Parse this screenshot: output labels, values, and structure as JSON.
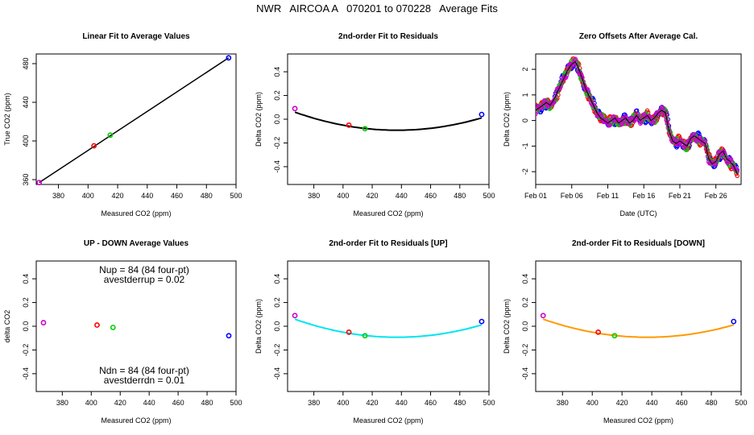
{
  "page_title": "NWR   AIRCOA A   070201 to 070228   Average Fits",
  "colors": {
    "purple": "#cc00cc",
    "red": "#ff0000",
    "green": "#00cc00",
    "blue": "#0000ff",
    "black": "#000000",
    "cyan": "#00e5ee",
    "orange": "#ff9900"
  },
  "chart_data": [
    {
      "type": "scatter",
      "title": "Linear Fit to Average Values",
      "xlabel": "Measured CO2 (ppm)",
      "ylabel": "True CO2 (ppm)",
      "xlim": [
        365,
        500
      ],
      "ylim": [
        355,
        490
      ],
      "xticks": [
        380,
        400,
        420,
        440,
        460,
        480,
        500
      ],
      "yticks": [
        360,
        400,
        440,
        480
      ],
      "points": [
        {
          "x": 367,
          "y": 357,
          "color": "purple"
        },
        {
          "x": 404,
          "y": 395,
          "color": "red"
        },
        {
          "x": 415,
          "y": 406,
          "color": "green"
        },
        {
          "x": 495,
          "y": 486,
          "color": "blue"
        }
      ],
      "fit_line": {
        "x": [
          367,
          495
        ],
        "y": [
          357,
          486
        ],
        "color": "black"
      }
    },
    {
      "type": "scatter",
      "title": "2nd-order Fit to Residuals",
      "xlabel": "Measured CO2 (ppm)",
      "ylabel": "Delta CO2 (ppm)",
      "xlim": [
        362,
        500
      ],
      "ylim": [
        -0.55,
        0.55
      ],
      "xticks": [
        380,
        400,
        420,
        440,
        460,
        480,
        500
      ],
      "yticks": [
        -0.4,
        -0.2,
        0.0,
        0.2,
        0.4
      ],
      "points": [
        {
          "x": 367,
          "y": 0.09,
          "color": "purple"
        },
        {
          "x": 404,
          "y": -0.05,
          "color": "red"
        },
        {
          "x": 415,
          "y": -0.08,
          "color": "green"
        },
        {
          "x": 495,
          "y": 0.04,
          "color": "blue"
        }
      ],
      "curve": {
        "color": "black",
        "coef": [
          3.1e-05,
          -0.0271,
          5.83
        ]
      }
    },
    {
      "type": "line",
      "title": "Zero Offsets After Average Cal.",
      "xlabel": "Date (UTC)",
      "ylabel": "Delta CO2 (ppm)",
      "xlim": [
        0,
        28.5
      ],
      "ylim": [
        -2.5,
        2.6
      ],
      "xticks": [
        {
          "v": 0,
          "label": "Feb 01"
        },
        {
          "v": 5,
          "label": "Feb 06"
        },
        {
          "v": 10,
          "label": "Feb 11"
        },
        {
          "v": 15,
          "label": "Feb 16"
        },
        {
          "v": 20,
          "label": "Feb 21"
        },
        {
          "v": 25,
          "label": "Feb 26"
        }
      ],
      "yticks": [
        -2,
        -1,
        0,
        1,
        2
      ],
      "series_colors": [
        "blue",
        "red",
        "green",
        "purple"
      ],
      "trace": {
        "x": [
          0,
          0.5,
          1,
          1.5,
          2,
          2.5,
          3,
          3.5,
          4,
          4.5,
          5,
          5.5,
          6,
          6.5,
          7,
          7.5,
          8,
          8.5,
          9,
          9.5,
          10,
          10.5,
          11,
          11.5,
          12,
          12.5,
          13,
          13.5,
          14,
          14.5,
          15,
          15.5,
          16,
          16.5,
          17,
          17.5,
          18,
          18.5,
          19,
          19.5,
          20,
          20.5,
          21,
          21.5,
          22,
          22.5,
          23,
          23.5,
          24,
          24.5,
          25,
          25.5,
          26,
          26.5,
          27,
          27.5,
          28
        ],
        "y": [
          0.4,
          0.5,
          0.6,
          0.7,
          0.6,
          0.8,
          1.1,
          1.4,
          1.7,
          2.0,
          2.2,
          2.3,
          2.0,
          1.6,
          1.2,
          0.9,
          0.6,
          0.3,
          0.1,
          0.0,
          -0.1,
          0.0,
          0.1,
          -0.1,
          0.0,
          0.1,
          -0.1,
          0.0,
          0.2,
          0.0,
          0.1,
          0.2,
          0.0,
          0.1,
          0.3,
          0.4,
          0.3,
          -0.4,
          -0.8,
          -0.9,
          -0.8,
          -0.9,
          -1.0,
          -0.7,
          -0.6,
          -0.7,
          -0.8,
          -0.9,
          -1.5,
          -1.7,
          -1.6,
          -1.3,
          -1.2,
          -1.5,
          -1.6,
          -1.8,
          -2.1
        ]
      }
    },
    {
      "type": "scatter",
      "title": "UP - DOWN Average Values",
      "xlabel": "Measured CO2 (ppm)",
      "ylabel": "delta CO2",
      "xlim": [
        362,
        500
      ],
      "ylim": [
        -0.55,
        0.55
      ],
      "xticks": [
        380,
        400,
        420,
        440,
        460,
        480,
        500
      ],
      "yticks": [
        -0.4,
        -0.2,
        0.0,
        0.2,
        0.4
      ],
      "points": [
        {
          "x": 367,
          "y": 0.03,
          "color": "purple"
        },
        {
          "x": 404,
          "y": 0.01,
          "color": "red"
        },
        {
          "x": 415,
          "y": -0.01,
          "color": "green"
        },
        {
          "x": 495,
          "y": -0.08,
          "color": "blue"
        }
      ],
      "annotations": {
        "nup": "Nup = 84 (84 four-pt)",
        "avestderrup": "avestderrup =  0.02",
        "ndn": "Ndn = 84 (84 four-pt)",
        "avestderrdn": "avestderrdn =  0.01"
      }
    },
    {
      "type": "scatter",
      "title": "2nd-order Fit to Residuals [UP]",
      "xlabel": "Measured CO2 (ppm)",
      "ylabel": "Delta CO2 (ppm)",
      "xlim": [
        362,
        500
      ],
      "ylim": [
        -0.55,
        0.55
      ],
      "xticks": [
        380,
        400,
        420,
        440,
        460,
        480,
        500
      ],
      "yticks": [
        -0.4,
        -0.2,
        0.0,
        0.2,
        0.4
      ],
      "points": [
        {
          "x": 367,
          "y": 0.09,
          "color": "purple"
        },
        {
          "x": 404,
          "y": -0.05,
          "color": "red"
        },
        {
          "x": 415,
          "y": -0.08,
          "color": "green"
        },
        {
          "x": 495,
          "y": 0.04,
          "color": "blue"
        }
      ],
      "curve": {
        "color": "cyan",
        "coef": [
          3.1e-05,
          -0.0271,
          5.83
        ]
      }
    },
    {
      "type": "scatter",
      "title": "2nd-order Fit to Residuals [DOWN]",
      "xlabel": "Measured CO2 (ppm)",
      "ylabel": "Delta CO2 (ppm)",
      "xlim": [
        362,
        500
      ],
      "ylim": [
        -0.55,
        0.55
      ],
      "xticks": [
        380,
        400,
        420,
        440,
        460,
        480,
        500
      ],
      "yticks": [
        -0.4,
        -0.2,
        0.0,
        0.2,
        0.4
      ],
      "points": [
        {
          "x": 367,
          "y": 0.09,
          "color": "purple"
        },
        {
          "x": 404,
          "y": -0.05,
          "color": "red"
        },
        {
          "x": 415,
          "y": -0.08,
          "color": "green"
        },
        {
          "x": 495,
          "y": 0.04,
          "color": "blue"
        }
      ],
      "curve": {
        "color": "orange",
        "coef": [
          3.1e-05,
          -0.0271,
          5.83
        ]
      }
    }
  ]
}
